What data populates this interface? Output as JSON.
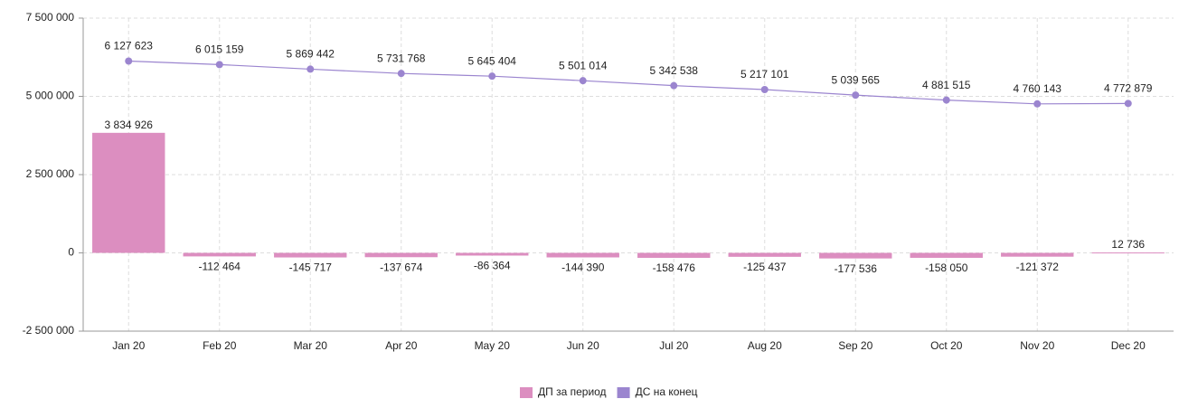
{
  "chart_data": {
    "type": "bar",
    "categories": [
      "Jan 20",
      "Feb 20",
      "Mar 20",
      "Apr 20",
      "May 20",
      "Jun 20",
      "Jul 20",
      "Aug 20",
      "Sep 20",
      "Oct 20",
      "Nov 20",
      "Dec 20"
    ],
    "series": [
      {
        "name": "ДП за период",
        "type": "bar",
        "color": "#dc8ec0",
        "values": [
          3834926,
          -112464,
          -145717,
          -137674,
          -86364,
          -144390,
          -158476,
          -125437,
          -177536,
          -158050,
          -121372,
          12736
        ],
        "value_labels": [
          "3 834 926",
          "-112 464",
          "-145 717",
          "-137 674",
          "-86 364",
          "-144 390",
          "-158 476",
          "-125 437",
          "-177 536",
          "-158 050",
          "-121 372",
          "12 736"
        ]
      },
      {
        "name": "ДС на конец",
        "type": "line",
        "color": "#9b85cf",
        "values": [
          6127623,
          6015159,
          5869442,
          5731768,
          5645404,
          5501014,
          5342538,
          5217101,
          5039565,
          4881515,
          4760143,
          4772879
        ],
        "value_labels": [
          "6 127 623",
          "6 015 159",
          "5 869 442",
          "5 731 768",
          "5 645 404",
          "5 501 014",
          "5 342 538",
          "5 217 101",
          "5 039 565",
          "4 881 515",
          "4 760 143",
          "4 772 879"
        ]
      }
    ],
    "ylim": [
      -2500000,
      7500000
    ],
    "yticks": [
      {
        "value": -2500000,
        "label": "-2 500 000"
      },
      0,
      {
        "value": 2500000,
        "label": "2 500 000"
      },
      {
        "value": 5000000,
        "label": "5 000 000"
      },
      {
        "value": 7500000,
        "label": "7 500 000"
      }
    ],
    "grid": true,
    "legend": "bottom"
  }
}
